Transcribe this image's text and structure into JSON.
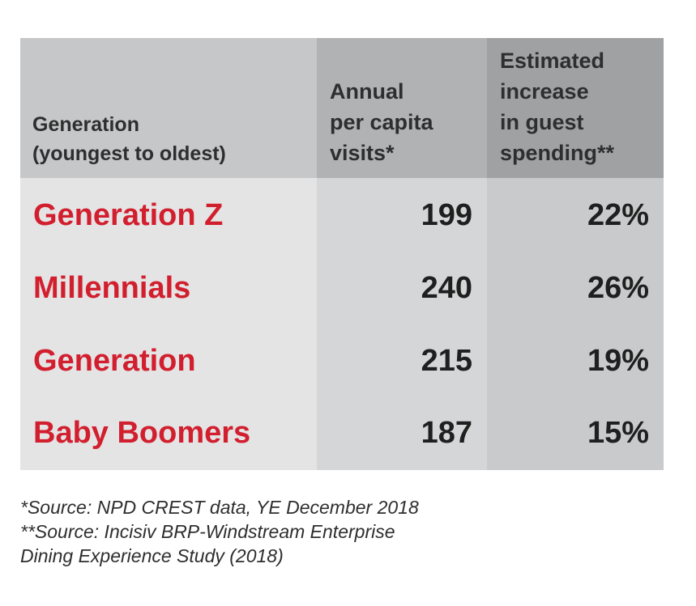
{
  "table": {
    "headers": {
      "generation": "Generation\n(youngest to oldest)",
      "visits": "Annual\nper capita\nvisits*",
      "spending": "Estimated\nincrease\nin guest\nspending**"
    },
    "rows": [
      {
        "generation": "Generation Z",
        "visits": "199",
        "spending": "22%"
      },
      {
        "generation": "Millennials",
        "visits": "240",
        "spending": "26%"
      },
      {
        "generation": "Generation",
        "visits": "215",
        "spending": "19%"
      },
      {
        "generation": "Baby Boomers",
        "visits": "187",
        "spending": "15%"
      }
    ]
  },
  "footnotes": [
    "*Source: NPD CREST data, YE December 2018",
    "**Source: Incisiv BRP-Windstream Enterprise",
    "Dining Experience Study (2018)"
  ],
  "colors": {
    "generation_text": "#d21f2e",
    "value_text": "#1f1f1f",
    "header_text": "#2e2e2e"
  },
  "chart_data": {
    "type": "table",
    "columns": [
      "Generation (youngest to oldest)",
      "Annual per capita visits*",
      "Estimated increase in guest spending**"
    ],
    "rows": [
      [
        "Generation Z",
        199,
        "22%"
      ],
      [
        "Millennials",
        240,
        "26%"
      ],
      [
        "Generation",
        215,
        "19%"
      ],
      [
        "Baby Boomers",
        187,
        "15%"
      ]
    ]
  }
}
